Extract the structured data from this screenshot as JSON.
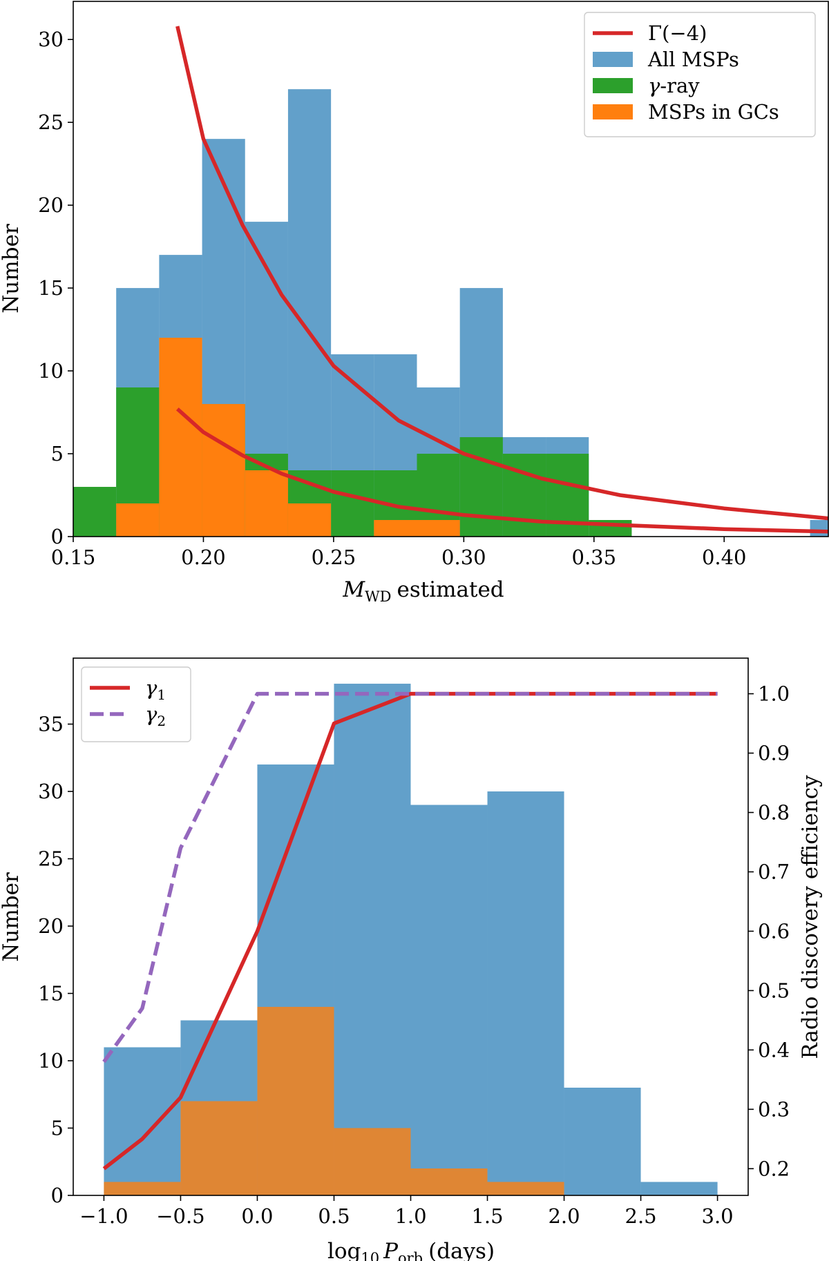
{
  "chart_data": [
    {
      "type": "bar",
      "xlabel": "estimated",
      "xlabel_symbol": "M",
      "xlabel_subscript": "WD",
      "ylabel": "Number",
      "xlim": [
        0.15,
        0.44
      ],
      "ylim": [
        0,
        32.3
      ],
      "x_ticks": [
        0.15,
        0.2,
        0.25,
        0.3,
        0.35,
        0.4
      ],
      "x_tick_labels": [
        "0.15",
        "0.20",
        "0.25",
        "0.30",
        "0.35",
        "0.40"
      ],
      "y_ticks": [
        0,
        5,
        10,
        15,
        20,
        25,
        30
      ],
      "y_tick_labels": [
        "0",
        "5",
        "10",
        "15",
        "20",
        "25",
        "30"
      ],
      "legend_position": "top-right",
      "series": [
        {
          "name": "All MSPs",
          "color": "#1f77b4",
          "opacity": 0.7,
          "bins": [
            [
              0.15,
              0.1665,
              0
            ],
            [
              0.1665,
              0.183,
              15
            ],
            [
              0.183,
              0.1995,
              17
            ],
            [
              0.1995,
              0.216,
              24
            ],
            [
              0.216,
              0.2325,
              19
            ],
            [
              0.2325,
              0.249,
              27
            ],
            [
              0.249,
              0.2655,
              11
            ],
            [
              0.2655,
              0.282,
              11
            ],
            [
              0.282,
              0.2985,
              9
            ],
            [
              0.2985,
              0.315,
              15
            ],
            [
              0.315,
              0.3315,
              6
            ],
            [
              0.3315,
              0.348,
              6
            ],
            [
              0.433,
              0.44,
              1
            ]
          ]
        },
        {
          "name": "γ-ray",
          "color": "#2ca02c",
          "opacity": 1,
          "bins": [
            [
              0.15,
              0.1665,
              3
            ],
            [
              0.1665,
              0.183,
              9
            ],
            [
              0.183,
              0.1995,
              9
            ],
            [
              0.1995,
              0.216,
              8
            ],
            [
              0.216,
              0.2325,
              5
            ],
            [
              0.2325,
              0.249,
              4
            ],
            [
              0.249,
              0.2655,
              4
            ],
            [
              0.2655,
              0.282,
              4
            ],
            [
              0.282,
              0.2985,
              5
            ],
            [
              0.2985,
              0.315,
              6
            ],
            [
              0.315,
              0.3315,
              5
            ],
            [
              0.3315,
              0.348,
              5
            ],
            [
              0.348,
              0.3645,
              1
            ]
          ]
        },
        {
          "name": "MSPs in GCs",
          "color": "#ff7f0e",
          "opacity": 1,
          "bins": [
            [
              0.1665,
              0.183,
              2
            ],
            [
              0.183,
              0.1995,
              12
            ],
            [
              0.1995,
              0.216,
              8
            ],
            [
              0.216,
              0.2325,
              4
            ],
            [
              0.2325,
              0.249,
              2
            ],
            [
              0.2655,
              0.282,
              1
            ],
            [
              0.282,
              0.2985,
              1
            ]
          ]
        }
      ],
      "curves": [
        {
          "name": "Γ(−4)",
          "color": "#d62728",
          "points": [
            [
              0.19,
              30.8
            ],
            [
              0.2,
              24.0
            ],
            [
              0.215,
              18.8
            ],
            [
              0.23,
              14.6
            ],
            [
              0.25,
              10.3
            ],
            [
              0.275,
              7.0
            ],
            [
              0.3,
              5.0
            ],
            [
              0.33,
              3.5
            ],
            [
              0.36,
              2.5
            ],
            [
              0.4,
              1.7
            ],
            [
              0.44,
              1.1
            ]
          ]
        },
        {
          "name": "",
          "color": "#d62728",
          "points": [
            [
              0.19,
              7.7
            ],
            [
              0.2,
              6.3
            ],
            [
              0.215,
              4.9
            ],
            [
              0.23,
              3.8
            ],
            [
              0.25,
              2.7
            ],
            [
              0.275,
              1.8
            ],
            [
              0.3,
              1.3
            ],
            [
              0.33,
              0.9
            ],
            [
              0.36,
              0.7
            ],
            [
              0.4,
              0.45
            ],
            [
              0.44,
              0.3
            ]
          ]
        }
      ],
      "legend": [
        "Γ(−4)",
        "All MSPs",
        "γ-ray",
        "MSPs in GCs"
      ]
    },
    {
      "type": "bar",
      "xlabel": "(days)",
      "xlabel_prefix": "log",
      "xlabel_prefix_subscript": "10",
      "xlabel_symbol": "P",
      "xlabel_subscript": "orb",
      "ylabel": "Number",
      "ylabel_right": "Radio discovery efficiency",
      "xlim": [
        -1.2,
        3.2
      ],
      "ylim": [
        0,
        39.9
      ],
      "ylim_right": [
        0.155,
        1.06
      ],
      "x_ticks": [
        -1.0,
        -0.5,
        0.0,
        0.5,
        1.0,
        1.5,
        2.0,
        2.5,
        3.0
      ],
      "x_tick_labels": [
        "−1.0",
        "−0.5",
        "0.0",
        "0.5",
        "1.0",
        "1.5",
        "2.0",
        "2.5",
        "3.0"
      ],
      "y_ticks": [
        0,
        5,
        10,
        15,
        20,
        25,
        30,
        35
      ],
      "y_tick_labels": [
        "0",
        "5",
        "10",
        "15",
        "20",
        "25",
        "30",
        "35"
      ],
      "y_ticks_right": [
        0.2,
        0.3,
        0.4,
        0.5,
        0.6,
        0.7,
        0.8,
        0.9,
        1.0
      ],
      "y_tick_labels_right": [
        "0.2",
        "0.3",
        "0.4",
        "0.5",
        "0.6",
        "0.7",
        "0.8",
        "0.9",
        "1.0"
      ],
      "legend_position": "top-left",
      "series": [
        {
          "name": "",
          "color": "#1f77b4",
          "opacity": 0.7,
          "bins": [
            [
              -1.0,
              -0.5,
              11
            ],
            [
              -0.5,
              0.0,
              13
            ],
            [
              0.0,
              0.5,
              32
            ],
            [
              0.5,
              1.0,
              38
            ],
            [
              1.0,
              1.5,
              29
            ],
            [
              1.5,
              2.0,
              30
            ],
            [
              2.0,
              2.5,
              8
            ],
            [
              2.5,
              3.0,
              1
            ]
          ]
        },
        {
          "name": "",
          "color": "#ff7f0e",
          "opacity": 0.8,
          "bins": [
            [
              -1.0,
              -0.5,
              1
            ],
            [
              -0.5,
              0.0,
              7
            ],
            [
              0.0,
              0.5,
              14
            ],
            [
              0.5,
              1.0,
              5
            ],
            [
              1.0,
              1.5,
              2
            ],
            [
              1.5,
              2.0,
              1
            ]
          ]
        }
      ],
      "curves": [
        {
          "name": "γ1",
          "color": "#d62728",
          "dashed": false,
          "axis": "right",
          "points": [
            [
              -1.0,
              0.2
            ],
            [
              -0.75,
              0.25
            ],
            [
              -0.5,
              0.32
            ],
            [
              0.0,
              0.6
            ],
            [
              0.5,
              0.95
            ],
            [
              1.0,
              1.0
            ],
            [
              3.0,
              1.0
            ]
          ]
        },
        {
          "name": "γ2",
          "color": "#9467bd",
          "dashed": true,
          "axis": "right",
          "points": [
            [
              -1.0,
              0.38
            ],
            [
              -0.75,
              0.47
            ],
            [
              -0.5,
              0.74
            ],
            [
              0.0,
              1.0
            ],
            [
              3.0,
              1.0
            ]
          ]
        }
      ],
      "legend": [
        "γ1",
        "γ2"
      ]
    }
  ]
}
